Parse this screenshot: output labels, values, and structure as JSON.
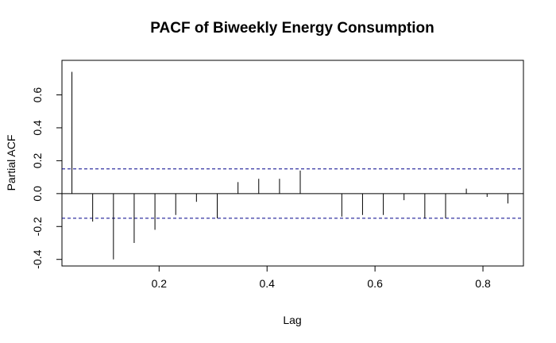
{
  "chart_data": {
    "type": "bar",
    "title": "PACF of Biweekly Energy Consumption",
    "xlabel": "Lag",
    "ylabel": "Partial ACF",
    "xlim": [
      0.02,
      0.875
    ],
    "ylim": [
      -0.44,
      0.81
    ],
    "xticks": [
      0.2,
      0.4,
      0.6,
      0.8
    ],
    "xtick_labels": [
      "0.2",
      "0.4",
      "0.6",
      "0.8"
    ],
    "yticks": [
      -0.4,
      -0.2,
      0.0,
      0.2,
      0.4,
      0.6
    ],
    "ytick_labels": [
      "-0.4",
      "-0.2",
      "0.0",
      "0.2",
      "0.4",
      "0.6"
    ],
    "confidence_band": [
      0.15,
      -0.15
    ],
    "confidence_band_color": "#00008b",
    "grid": false,
    "x": [
      0.0385,
      0.0769,
      0.1154,
      0.1538,
      0.1923,
      0.2308,
      0.2692,
      0.3077,
      0.3462,
      0.3846,
      0.4231,
      0.4615,
      0.5,
      0.5385,
      0.5769,
      0.6154,
      0.6538,
      0.6923,
      0.7308,
      0.7692,
      0.8077,
      0.8462
    ],
    "values": [
      0.74,
      -0.17,
      -0.4,
      -0.3,
      -0.22,
      -0.13,
      -0.05,
      -0.15,
      0.07,
      0.09,
      0.09,
      0.14,
      0.0,
      -0.14,
      -0.13,
      -0.13,
      -0.04,
      -0.15,
      -0.15,
      0.03,
      -0.02,
      -0.06
    ]
  }
}
